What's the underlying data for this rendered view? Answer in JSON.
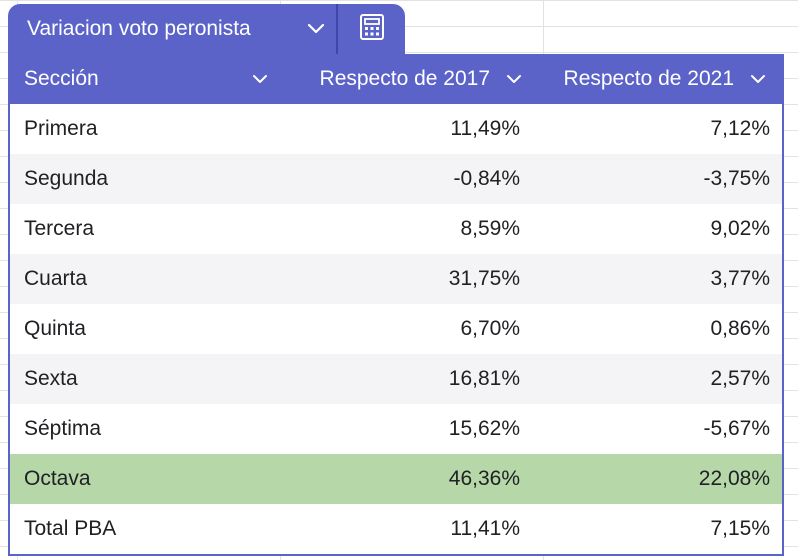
{
  "tab": {
    "title": "Variacion voto peronista",
    "dropdown_icon": "chevron-down-icon",
    "calc_icon": "calculator-icon"
  },
  "columns": [
    "Sección",
    "Respecto de 2017",
    "Respecto de 2021"
  ],
  "rows": [
    [
      "Primera",
      "11,49%",
      "7,12%"
    ],
    [
      "Segunda",
      "-0,84%",
      "-3,75%"
    ],
    [
      "Tercera",
      "8,59%",
      "9,02%"
    ],
    [
      "Cuarta",
      "31,75%",
      "3,77%"
    ],
    [
      "Quinta",
      "6,70%",
      "0,86%"
    ],
    [
      "Sexta",
      "16,81%",
      "2,57%"
    ],
    [
      "Séptima",
      "15,62%",
      "-5,67%"
    ],
    [
      "Octava",
      "46,36%",
      "22,08%"
    ],
    [
      "Total PBA",
      "11,41%",
      "7,15%"
    ]
  ],
  "colors": {
    "header": "#5b63c9",
    "highlight_row": "#b6d7a8",
    "alt_row": "#f4f4f6"
  }
}
